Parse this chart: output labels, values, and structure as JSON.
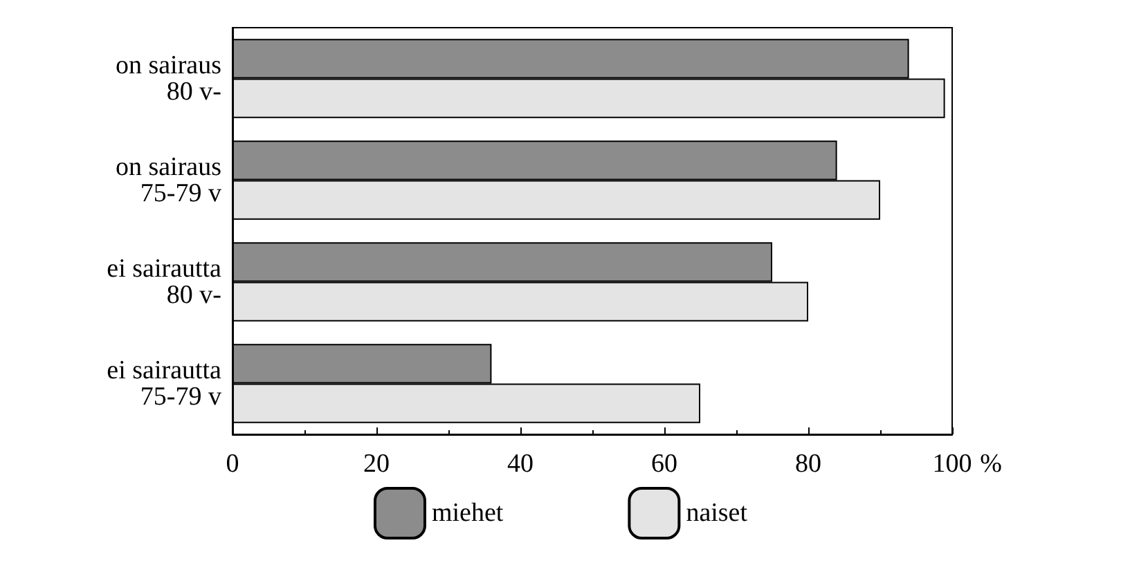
{
  "chart_data": {
    "type": "bar",
    "orientation": "horizontal",
    "xlabel": "%",
    "categories": [
      "on sairaus\n80 v-",
      "on sairaus\n75-79 v",
      "ei sairautta\n80 v-",
      "ei sairautta\n75-79 v"
    ],
    "series": [
      {
        "name": "miehet",
        "color": "#8c8c8c",
        "values": [
          94,
          84,
          75,
          36
        ]
      },
      {
        "name": "naiset",
        "color": "#e4e4e4",
        "values": [
          99,
          90,
          80,
          65
        ]
      }
    ],
    "xlim": [
      0,
      100
    ],
    "xticks": [
      0,
      20,
      40,
      60,
      80,
      100
    ],
    "grid": false,
    "legend": "bottom"
  }
}
